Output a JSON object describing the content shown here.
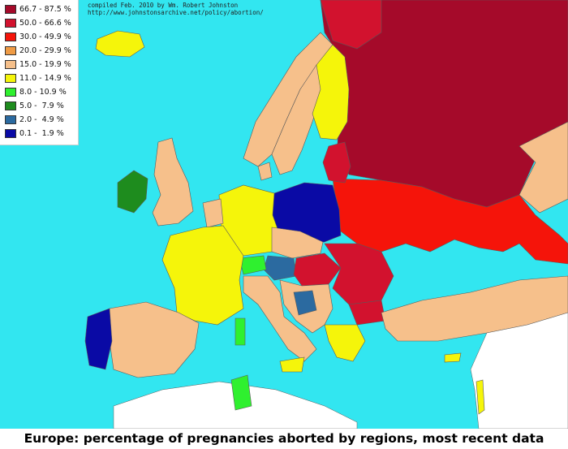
{
  "title": "Europe:  percentage of pregnancies aborted by regions, most recent data",
  "credit": {
    "line1": "compiled Feb. 2010 by Wm. Robert Johnston",
    "line2": "http://www.johnstonsarchive.net/policy/abortion/"
  },
  "legend": [
    {
      "label": "66.7 - 87.5 %",
      "color": "#a50a2a"
    },
    {
      "label": "50.0 - 66.6 %",
      "color": "#d2122e"
    },
    {
      "label": "30.0 - 49.9 %",
      "color": "#f5140a"
    },
    {
      "label": "20.0 - 29.9 %",
      "color": "#ef9b45"
    },
    {
      "label": "15.0 - 19.9 %",
      "color": "#f6c08b"
    },
    {
      "label": "11.0 - 14.9 %",
      "color": "#f5f50a"
    },
    {
      "label": "8.0 - 10.9 %",
      "color": "#2ff02f"
    },
    {
      "label": "5.0 -  7.9 %",
      "color": "#1e8c1e"
    },
    {
      "label": "2.0 -  4.9 %",
      "color": "#2b6aa0"
    },
    {
      "label": "0.1 -  1.9 %",
      "color": "#0a0aa5"
    }
  ],
  "colors": {
    "sea": "#32e6f0",
    "no_data_land": "#ffffff",
    "region_border": "#5a5a5a"
  }
}
